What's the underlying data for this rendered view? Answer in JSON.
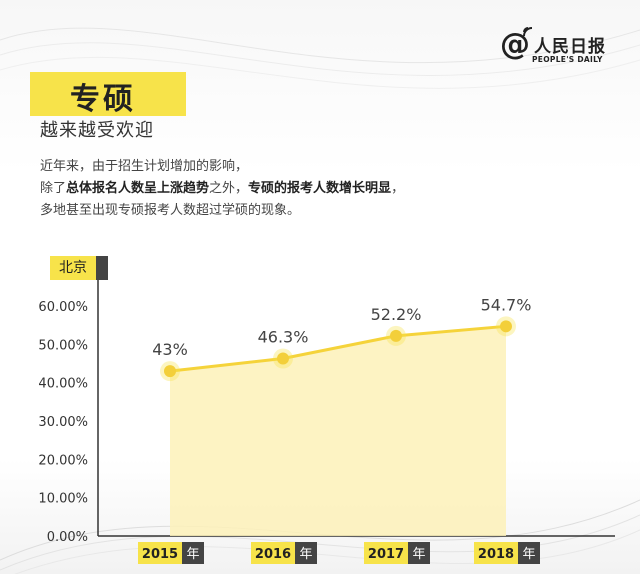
{
  "brand": {
    "name_cn": "人民日报",
    "name_en": "PEOPLE'S DAILY",
    "at_symbol": "@"
  },
  "heading": {
    "title": "专硕",
    "subtitle": "越来越受欢迎"
  },
  "description": {
    "line1": "近年来，由于招生计划增加的影响，",
    "line2_a": "除了",
    "line2_b": "总体报名人数呈上涨趋势",
    "line2_c": "之外，",
    "line2_d": "专硕的报考人数增长明显",
    "line2_e": "，",
    "line3": "多地甚至出现专硕报考人数超过学硕的现象。"
  },
  "city_label": "北京",
  "colors": {
    "accent": "#f7e34a",
    "dark": "#444444",
    "line": "#f5d33a",
    "area": "#fdf1b8"
  },
  "chart_data": {
    "type": "area",
    "categories": [
      "2015",
      "2016",
      "2017",
      "2018"
    ],
    "category_suffix": "年",
    "values": [
      43,
      46.3,
      52.2,
      54.7
    ],
    "data_labels": [
      "43%",
      "46.3%",
      "52.2%",
      "54.7%"
    ],
    "y_ticks": [
      "0.00%",
      "10.00%",
      "20.00%",
      "30.00%",
      "40.00%",
      "50.00%",
      "60.00%"
    ],
    "ylim": [
      0,
      60
    ],
    "grid": false
  }
}
